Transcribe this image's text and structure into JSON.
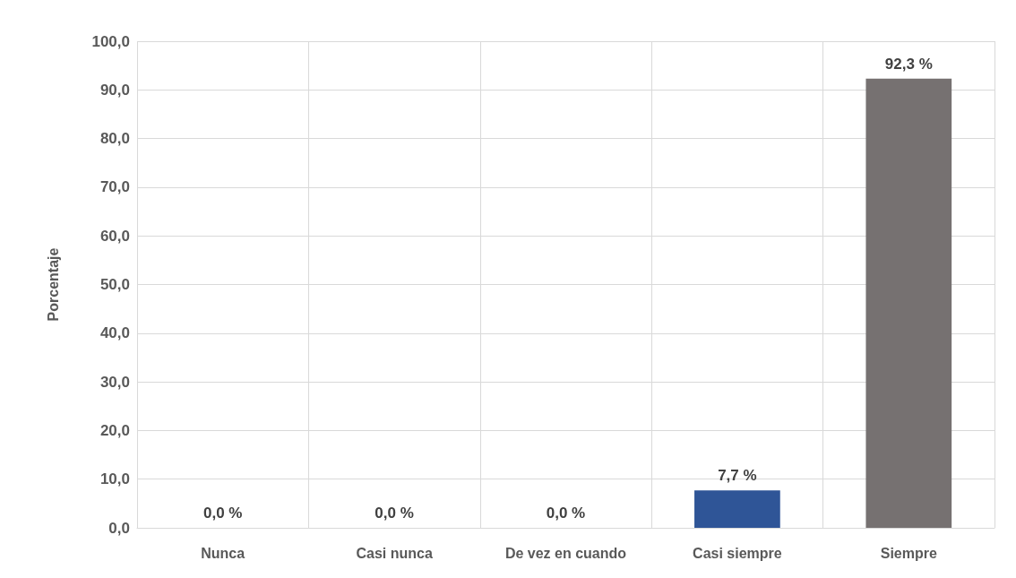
{
  "chart_data": {
    "type": "bar",
    "ylabel": "Porcentaje",
    "categories": [
      "Nunca",
      "Casi nunca",
      "De vez en cuando",
      "Casi siempre",
      "Siempre"
    ],
    "values": [
      0,
      0,
      0,
      7.7,
      92.3
    ],
    "colors": [
      "#2f5597",
      "#2f5597",
      "#2f5597",
      "#2f5597",
      "#767171"
    ],
    "value_labels": [
      "0,0 %",
      "0,0 %",
      "0,0 %",
      "7,7 %",
      "92,3 %"
    ],
    "ylim": [
      0,
      100
    ],
    "yticks": [
      {
        "value": 0,
        "label": "0,0"
      },
      {
        "value": 10,
        "label": "10,0"
      },
      {
        "value": 20,
        "label": "20,0"
      },
      {
        "value": 30,
        "label": "30,0"
      },
      {
        "value": 40,
        "label": "40,0"
      },
      {
        "value": 50,
        "label": "50,0"
      },
      {
        "value": 60,
        "label": "60,0"
      },
      {
        "value": 70,
        "label": "70,0"
      },
      {
        "value": 80,
        "label": "80,0"
      },
      {
        "value": 90,
        "label": "90,0"
      },
      {
        "value": 100,
        "label": "100,0"
      }
    ],
    "grid": true
  }
}
